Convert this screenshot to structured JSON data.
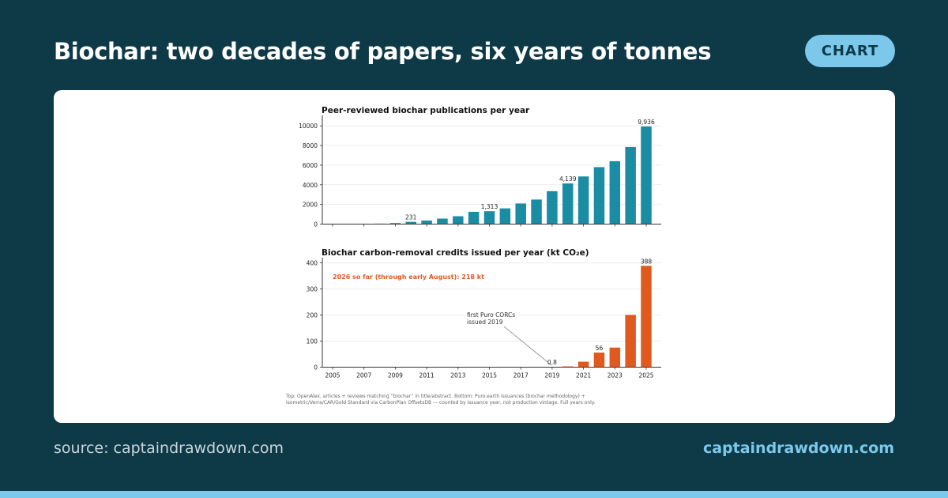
{
  "header": {
    "title": "Biochar: two decades of papers, six years of tonnes",
    "badge": "CHART"
  },
  "footer": {
    "source": "source: captaindrawdown.com",
    "site": "captaindrawdown.com"
  },
  "colors": {
    "background": "#0e3a48",
    "accent": "#7cc8ea",
    "publications_bar": "#1a8ca3",
    "credits_bar": "#e05a20"
  },
  "chart_data": [
    {
      "type": "bar",
      "title": "Peer-reviewed biochar publications per year",
      "categories": [
        "2005",
        "2006",
        "2007",
        "2008",
        "2009",
        "2010",
        "2011",
        "2012",
        "2013",
        "2014",
        "2015",
        "2016",
        "2017",
        "2018",
        "2019",
        "2020",
        "2021",
        "2022",
        "2023",
        "2024",
        "2025"
      ],
      "values": [
        5,
        8,
        20,
        50,
        100,
        231,
        360,
        560,
        800,
        1250,
        1313,
        1600,
        2100,
        2500,
        3350,
        4139,
        4850,
        5800,
        6400,
        7850,
        9936
      ],
      "data_labels": [
        {
          "x": "2010",
          "text": "231"
        },
        {
          "x": "2015",
          "text": "1,313"
        },
        {
          "x": "2020",
          "text": "4,139"
        },
        {
          "x": "2025",
          "text": "9,936"
        }
      ],
      "ylim": [
        0,
        10500
      ],
      "yticks": [
        "0",
        "2000",
        "4000",
        "6000",
        "8000",
        "10000"
      ],
      "grid": "horizontal"
    },
    {
      "type": "bar",
      "title": "Biochar carbon-removal credits issued per year (kt CO₂e)",
      "categories": [
        "2005",
        "2006",
        "2007",
        "2008",
        "2009",
        "2010",
        "2011",
        "2012",
        "2013",
        "2014",
        "2015",
        "2016",
        "2017",
        "2018",
        "2019",
        "2020",
        "2021",
        "2022",
        "2023",
        "2024",
        "2025"
      ],
      "values": [
        0,
        0,
        0,
        0,
        0,
        0,
        0,
        0,
        0,
        0,
        0,
        0,
        0,
        0,
        0.8,
        3,
        21,
        56,
        75,
        200,
        388
      ],
      "data_labels": [
        {
          "x": "2019",
          "text": "0.8"
        },
        {
          "x": "2022",
          "text": "56"
        },
        {
          "x": "2025",
          "text": "388"
        }
      ],
      "annotations": [
        {
          "text_lines": [
            "first Puro CORCs",
            "issued 2019"
          ],
          "points_to": "2019"
        },
        {
          "text": "2026 so far (through early August): 218 kt"
        }
      ],
      "ylim": [
        0,
        410
      ],
      "yticks": [
        "0",
        "100",
        "200",
        "300",
        "400"
      ],
      "xticks": [
        "2005",
        "2007",
        "2009",
        "2011",
        "2013",
        "2015",
        "2017",
        "2019",
        "2021",
        "2023",
        "2025"
      ],
      "grid": "horizontal"
    }
  ],
  "note": {
    "line1": "Top: OpenAlex, articles + reviews matching “biochar” in title/abstract.   Bottom: Puro.earth issuances (biochar methodology) +",
    "line2": "Isometric/Verra/CAR/Gold Standard via CarbonPlan OffsetsDB — counted by issuance year, not production vintage. Full years only."
  }
}
